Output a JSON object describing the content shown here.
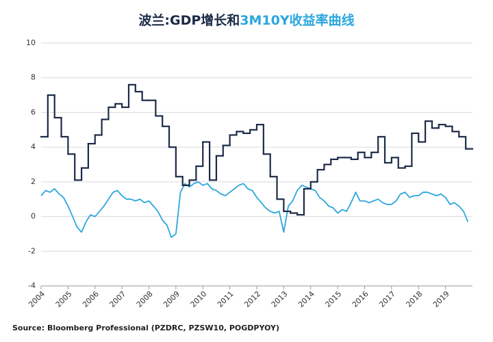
{
  "chart_data": {
    "type": "line",
    "title": [
      "波兰:GDP增长和",
      "3M10Y收益率曲线"
    ],
    "source": "Source: Bloomberg Professional  (PZDRC, PZSW10, POGDPYOY)",
    "xlim": [
      2004,
      2020
    ],
    "xticks": [
      2004,
      2005,
      2006,
      2007,
      2008,
      2009,
      2010,
      2011,
      2012,
      2013,
      2014,
      2015,
      2016,
      2017,
      2018,
      2019
    ],
    "ylim": [
      -4,
      10
    ],
    "yticks": [
      -4,
      -2,
      0,
      2,
      4,
      6,
      8,
      10
    ],
    "grid": true,
    "series": [
      {
        "color": "#1b2a47",
        "step": true,
        "x": [
          2004,
          2004.25,
          2004.5,
          2004.75,
          2005,
          2005.25,
          2005.5,
          2005.75,
          2006,
          2006.25,
          2006.5,
          2006.75,
          2007,
          2007.25,
          2007.5,
          2007.75,
          2008,
          2008.25,
          2008.5,
          2008.75,
          2009,
          2009.25,
          2009.5,
          2009.75,
          2010,
          2010.25,
          2010.5,
          2010.75,
          2011,
          2011.25,
          2011.5,
          2011.75,
          2012,
          2012.25,
          2012.5,
          2012.75,
          2013,
          2013.25,
          2013.5,
          2013.75,
          2014,
          2014.25,
          2014.5,
          2014.75,
          2015,
          2015.25,
          2015.5,
          2015.75,
          2016,
          2016.25,
          2016.5,
          2016.75,
          2017,
          2017.25,
          2017.5,
          2017.75,
          2018,
          2018.25,
          2018.5,
          2018.75,
          2019,
          2019.25,
          2019.5,
          2019.75
        ],
        "values": [
          4.6,
          7.0,
          5.7,
          4.6,
          3.6,
          2.1,
          2.8,
          4.2,
          4.7,
          5.6,
          6.3,
          6.5,
          6.3,
          7.6,
          7.2,
          6.7,
          6.7,
          5.8,
          5.2,
          4.0,
          2.3,
          1.8,
          2.1,
          2.9,
          4.3,
          2.1,
          3.5,
          4.1,
          4.7,
          4.9,
          4.8,
          5.0,
          5.3,
          3.6,
          2.3,
          1.0,
          0.3,
          0.2,
          0.1,
          1.6,
          2.0,
          2.7,
          3.0,
          3.3,
          3.4,
          3.4,
          3.3,
          3.7,
          3.4,
          3.7,
          4.6,
          3.1,
          3.4,
          2.8,
          2.9,
          4.8,
          4.3,
          5.5,
          5.1,
          5.3,
          5.2,
          4.9,
          4.6,
          3.9
        ]
      },
      {
        "color": "#2ba6de",
        "step": false,
        "x": [
          2004,
          2004.17,
          2004.33,
          2004.5,
          2004.67,
          2004.83,
          2005,
          2005.17,
          2005.33,
          2005.5,
          2005.67,
          2005.83,
          2006,
          2006.17,
          2006.33,
          2006.5,
          2006.67,
          2006.83,
          2007,
          2007.17,
          2007.33,
          2007.5,
          2007.67,
          2007.83,
          2008,
          2008.17,
          2008.33,
          2008.5,
          2008.67,
          2008.83,
          2009,
          2009.17,
          2009.33,
          2009.5,
          2009.67,
          2009.83,
          2010,
          2010.17,
          2010.33,
          2010.5,
          2010.67,
          2010.83,
          2011,
          2011.17,
          2011.33,
          2011.5,
          2011.67,
          2011.83,
          2012,
          2012.17,
          2012.33,
          2012.5,
          2012.67,
          2012.83,
          2013,
          2013.17,
          2013.33,
          2013.5,
          2013.67,
          2013.83,
          2014,
          2014.17,
          2014.33,
          2014.5,
          2014.67,
          2014.83,
          2015,
          2015.17,
          2015.33,
          2015.5,
          2015.67,
          2015.83,
          2016,
          2016.17,
          2016.33,
          2016.5,
          2016.67,
          2016.83,
          2017,
          2017.17,
          2017.33,
          2017.5,
          2017.67,
          2017.83,
          2018,
          2018.17,
          2018.33,
          2018.5,
          2018.67,
          2018.83,
          2019,
          2019.17,
          2019.33,
          2019.5,
          2019.67,
          2019.83
        ],
        "values": [
          1.2,
          1.5,
          1.4,
          1.6,
          1.3,
          1.1,
          0.6,
          0.0,
          -0.6,
          -0.9,
          -0.3,
          0.1,
          0.0,
          0.3,
          0.6,
          1.0,
          1.4,
          1.5,
          1.2,
          1.0,
          1.0,
          0.9,
          1.0,
          0.8,
          0.9,
          0.6,
          0.3,
          -0.2,
          -0.5,
          -1.2,
          -1.0,
          1.4,
          1.9,
          1.7,
          1.9,
          2.0,
          1.8,
          1.9,
          1.6,
          1.5,
          1.3,
          1.2,
          1.4,
          1.6,
          1.8,
          1.9,
          1.6,
          1.5,
          1.1,
          0.8,
          0.5,
          0.3,
          0.2,
          0.3,
          -0.9,
          0.6,
          0.9,
          1.5,
          1.8,
          1.7,
          1.6,
          1.5,
          1.1,
          0.9,
          0.6,
          0.5,
          0.2,
          0.4,
          0.3,
          0.8,
          1.4,
          0.9,
          0.9,
          0.8,
          0.9,
          1.0,
          0.8,
          0.7,
          0.7,
          0.9,
          1.3,
          1.4,
          1.1,
          1.2,
          1.2,
          1.4,
          1.4,
          1.3,
          1.2,
          1.3,
          1.1,
          0.7,
          0.8,
          0.6,
          0.3,
          -0.3
        ]
      }
    ]
  }
}
